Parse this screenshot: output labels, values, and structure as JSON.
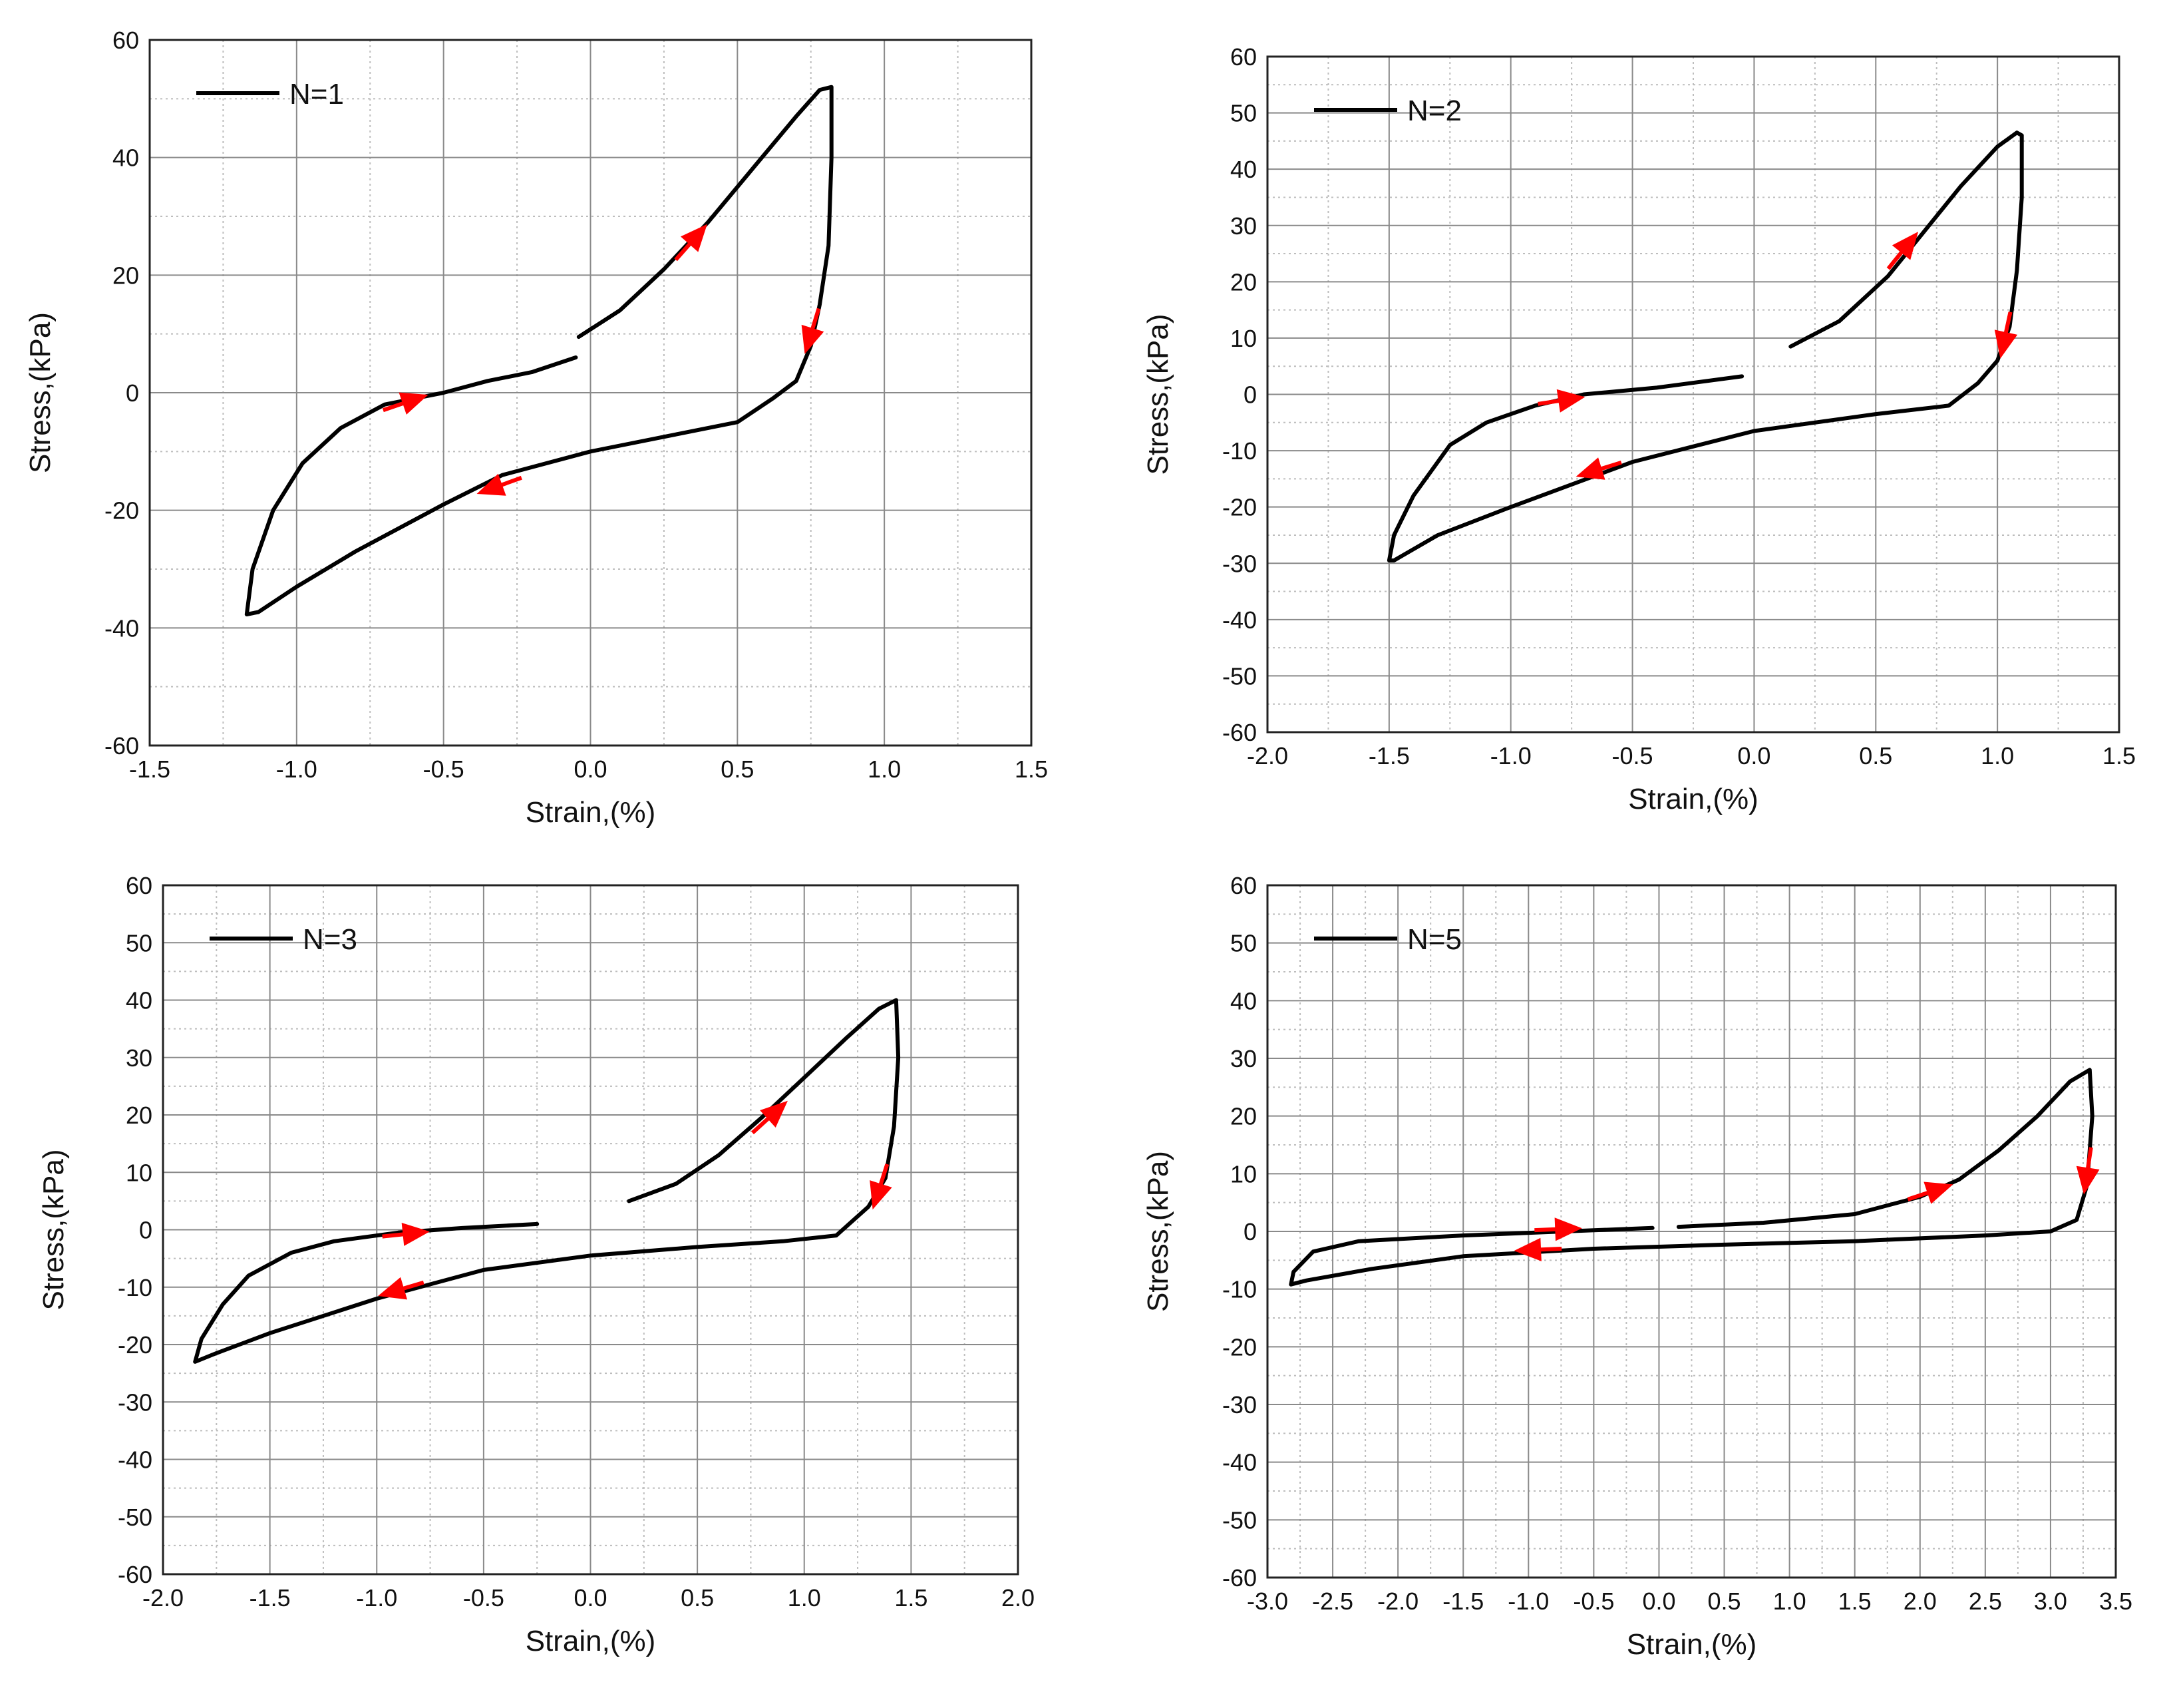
{
  "chart_data": [
    {
      "type": "line",
      "legend": "N=1",
      "xlabel": "Strain,(%)",
      "ylabel": "Stress,(kPa)",
      "xlim": [
        -1.5,
        1.5
      ],
      "ylim": [
        -60,
        60
      ],
      "xticks": [
        -1.5,
        -1.0,
        -0.5,
        0.0,
        0.5,
        1.0,
        1.5
      ],
      "xtick_labels": [
        "-1.5",
        "-1.0",
        "-0.5",
        "0.0",
        "0.5",
        "1.0",
        "1.5"
      ],
      "yticks": [
        -60,
        -40,
        -20,
        0,
        20,
        40,
        60
      ],
      "ytick_labels": [
        "-60",
        "-40",
        "-20",
        "0",
        "20",
        "40",
        "60"
      ],
      "series": [
        {
          "name": "loop",
          "color": "#000000",
          "points": [
            [
              -0.04,
              9.5
            ],
            [
              0.1,
              14
            ],
            [
              0.25,
              21
            ],
            [
              0.4,
              29
            ],
            [
              0.55,
              38
            ],
            [
              0.7,
              47
            ],
            [
              0.78,
              51.5
            ],
            [
              0.82,
              52
            ],
            [
              0.82,
              40
            ],
            [
              0.81,
              25
            ],
            [
              0.78,
              15
            ],
            [
              0.75,
              8
            ],
            [
              0.7,
              2
            ],
            [
              0.62,
              -1
            ],
            [
              0.5,
              -5
            ],
            [
              0.3,
              -7
            ],
            [
              0.0,
              -10
            ],
            [
              -0.3,
              -14
            ],
            [
              -0.5,
              -19
            ],
            [
              -0.8,
              -27
            ],
            [
              -1.0,
              -33
            ],
            [
              -1.13,
              -37.3
            ],
            [
              -1.17,
              -37.7
            ],
            [
              -1.15,
              -30
            ],
            [
              -1.08,
              -20
            ],
            [
              -0.98,
              -12
            ],
            [
              -0.85,
              -6
            ],
            [
              -0.7,
              -2
            ],
            [
              -0.5,
              0
            ],
            [
              -0.35,
              2
            ],
            [
              -0.2,
              3.5
            ],
            [
              -0.05,
              6
            ]
          ]
        }
      ],
      "arrows": [
        {
          "x": 0.35,
          "y": 26,
          "dir": "up"
        },
        {
          "x": 0.75,
          "y": 10,
          "dir": "down"
        },
        {
          "x": -0.32,
          "y": -16,
          "dir": "down"
        },
        {
          "x": -0.62,
          "y": -1.5,
          "dir": "up"
        }
      ]
    },
    {
      "type": "line",
      "legend": "N=2",
      "xlabel": "Strain,(%)",
      "ylabel": "Stress,(kPa)",
      "xlim": [
        -2.0,
        1.5
      ],
      "ylim": [
        -60,
        60
      ],
      "xticks": [
        -2.0,
        -1.5,
        -1.0,
        -0.5,
        0.0,
        0.5,
        1.0,
        1.5
      ],
      "xtick_labels": [
        "-2.0",
        "-1.5",
        "-1.0",
        "-0.5",
        "0.0",
        "0.5",
        "1.0",
        "1.5"
      ],
      "yticks": [
        -60,
        -50,
        -40,
        -30,
        -20,
        -10,
        0,
        10,
        20,
        30,
        40,
        50,
        60
      ],
      "ytick_labels": [
        "-60",
        "-50",
        "-40",
        "-30",
        "-20",
        "-10",
        "0",
        "10",
        "20",
        "30",
        "40",
        "50",
        "60"
      ],
      "series": [
        {
          "name": "loop",
          "color": "#000000",
          "points": [
            [
              0.15,
              8.5
            ],
            [
              0.35,
              13
            ],
            [
              0.55,
              21
            ],
            [
              0.7,
              29
            ],
            [
              0.85,
              37
            ],
            [
              1.0,
              44
            ],
            [
              1.08,
              46.5
            ],
            [
              1.1,
              46
            ],
            [
              1.1,
              35
            ],
            [
              1.08,
              22
            ],
            [
              1.05,
              12
            ],
            [
              1.0,
              6
            ],
            [
              0.92,
              2
            ],
            [
              0.8,
              -2
            ],
            [
              0.5,
              -3.5
            ],
            [
              0.0,
              -6.5
            ],
            [
              -0.5,
              -12
            ],
            [
              -1.0,
              -20
            ],
            [
              -1.3,
              -25
            ],
            [
              -1.42,
              -28
            ],
            [
              -1.48,
              -29.5
            ],
            [
              -1.5,
              -29.5
            ],
            [
              -1.48,
              -25
            ],
            [
              -1.4,
              -18
            ],
            [
              -1.25,
              -9
            ],
            [
              -1.1,
              -5
            ],
            [
              -0.9,
              -2
            ],
            [
              -0.7,
              0
            ],
            [
              -0.4,
              1.2
            ],
            [
              -0.05,
              3.2
            ]
          ]
        }
      ],
      "arrows": [
        {
          "x": 0.62,
          "y": 26,
          "dir": "up"
        },
        {
          "x": 1.03,
          "y": 10,
          "dir": "down"
        },
        {
          "x": -0.65,
          "y": -13.5,
          "dir": "down"
        },
        {
          "x": -0.78,
          "y": -1,
          "dir": "up"
        }
      ]
    },
    {
      "type": "line",
      "legend": "N=3",
      "xlabel": "Strain,(%)",
      "ylabel": "Stress,(kPa)",
      "xlim": [
        -2.0,
        2.0
      ],
      "ylim": [
        -60,
        60
      ],
      "xticks": [
        -2.0,
        -1.5,
        -1.0,
        -0.5,
        0.0,
        0.5,
        1.0,
        1.5,
        2.0
      ],
      "xtick_labels": [
        "-2.0",
        "-1.5",
        "-1.0",
        "-0.5",
        "0.0",
        "0.5",
        "1.0",
        "1.5",
        "2.0"
      ],
      "yticks": [
        -60,
        -50,
        -40,
        -30,
        -20,
        -10,
        0,
        10,
        20,
        30,
        40,
        50,
        60
      ],
      "ytick_labels": [
        "-60",
        "-50",
        "-40",
        "-30",
        "-20",
        "-10",
        "0",
        "10",
        "20",
        "30",
        "40",
        "50",
        "60"
      ],
      "series": [
        {
          "name": "loop",
          "color": "#000000",
          "points": [
            [
              0.18,
              5
            ],
            [
              0.4,
              8
            ],
            [
              0.6,
              13
            ],
            [
              0.8,
              19.5
            ],
            [
              1.0,
              26.5
            ],
            [
              1.2,
              33.5
            ],
            [
              1.35,
              38.5
            ],
            [
              1.43,
              40
            ],
            [
              1.44,
              30
            ],
            [
              1.42,
              18
            ],
            [
              1.38,
              9
            ],
            [
              1.3,
              4
            ],
            [
              1.15,
              -1
            ],
            [
              0.9,
              -2
            ],
            [
              0.5,
              -3
            ],
            [
              0.0,
              -4.5
            ],
            [
              -0.5,
              -7
            ],
            [
              -1.0,
              -12
            ],
            [
              -1.5,
              -18
            ],
            [
              -1.75,
              -21.5
            ],
            [
              -1.85,
              -23
            ],
            [
              -1.82,
              -19
            ],
            [
              -1.72,
              -13
            ],
            [
              -1.6,
              -8
            ],
            [
              -1.4,
              -4
            ],
            [
              -1.2,
              -2
            ],
            [
              -0.9,
              -0.5
            ],
            [
              -0.6,
              0.3
            ],
            [
              -0.25,
              1
            ]
          ]
        }
      ],
      "arrows": [
        {
          "x": 0.85,
          "y": 20,
          "dir": "up"
        },
        {
          "x": 1.35,
          "y": 7,
          "dir": "down"
        },
        {
          "x": -0.9,
          "y": -10.5,
          "dir": "down"
        },
        {
          "x": -0.85,
          "y": -0.7,
          "dir": "up"
        }
      ]
    },
    {
      "type": "line",
      "legend": "N=5",
      "xlabel": "Strain,(%)",
      "ylabel": "Stress,(kPa)",
      "xlim": [
        -3.0,
        3.5
      ],
      "ylim": [
        -60,
        60
      ],
      "xticks": [
        -3.0,
        -2.5,
        -2.0,
        -1.5,
        -1.0,
        -0.5,
        0.0,
        0.5,
        1.0,
        1.5,
        2.0,
        2.5,
        3.0,
        3.5
      ],
      "xtick_labels": [
        "-3.0",
        "-2.5",
        "-2.0",
        "-1.5",
        "-1.0",
        "-0.5",
        "0.0",
        "0.5",
        "1.0",
        "1.5",
        "2.0",
        "2.5",
        "3.0",
        "3.5"
      ],
      "yticks": [
        -60,
        -50,
        -40,
        -30,
        -20,
        -10,
        0,
        10,
        20,
        30,
        40,
        50,
        60
      ],
      "ytick_labels": [
        "-60",
        "-50",
        "-40",
        "-30",
        "-20",
        "-10",
        "0",
        "10",
        "20",
        "30",
        "40",
        "50",
        "60"
      ],
      "series": [
        {
          "name": "loop",
          "color": "#000000",
          "points": [
            [
              0.15,
              0.8
            ],
            [
              0.8,
              1.5
            ],
            [
              1.5,
              3
            ],
            [
              2.0,
              6
            ],
            [
              2.3,
              9
            ],
            [
              2.6,
              14
            ],
            [
              2.9,
              20
            ],
            [
              3.15,
              26
            ],
            [
              3.3,
              28
            ],
            [
              3.32,
              20
            ],
            [
              3.28,
              8
            ],
            [
              3.2,
              2
            ],
            [
              3.0,
              0
            ],
            [
              2.5,
              -0.7
            ],
            [
              1.5,
              -1.7
            ],
            [
              0.5,
              -2.3
            ],
            [
              -0.5,
              -3
            ],
            [
              -1.5,
              -4.3
            ],
            [
              -2.2,
              -6.5
            ],
            [
              -2.7,
              -8.5
            ],
            [
              -2.82,
              -9.2
            ],
            [
              -2.8,
              -7
            ],
            [
              -2.65,
              -3.5
            ],
            [
              -2.3,
              -1.7
            ],
            [
              -1.5,
              -0.7
            ],
            [
              -0.5,
              0.2
            ],
            [
              -0.05,
              0.6
            ]
          ]
        }
      ],
      "arrows": [
        {
          "x": 2.1,
          "y": 7,
          "dir": "up"
        },
        {
          "x": 3.28,
          "y": 10,
          "dir": "down"
        },
        {
          "x": -0.95,
          "y": -3.2,
          "dir": "down"
        },
        {
          "x": -0.75,
          "y": 0.4,
          "dir": "up"
        }
      ]
    }
  ]
}
